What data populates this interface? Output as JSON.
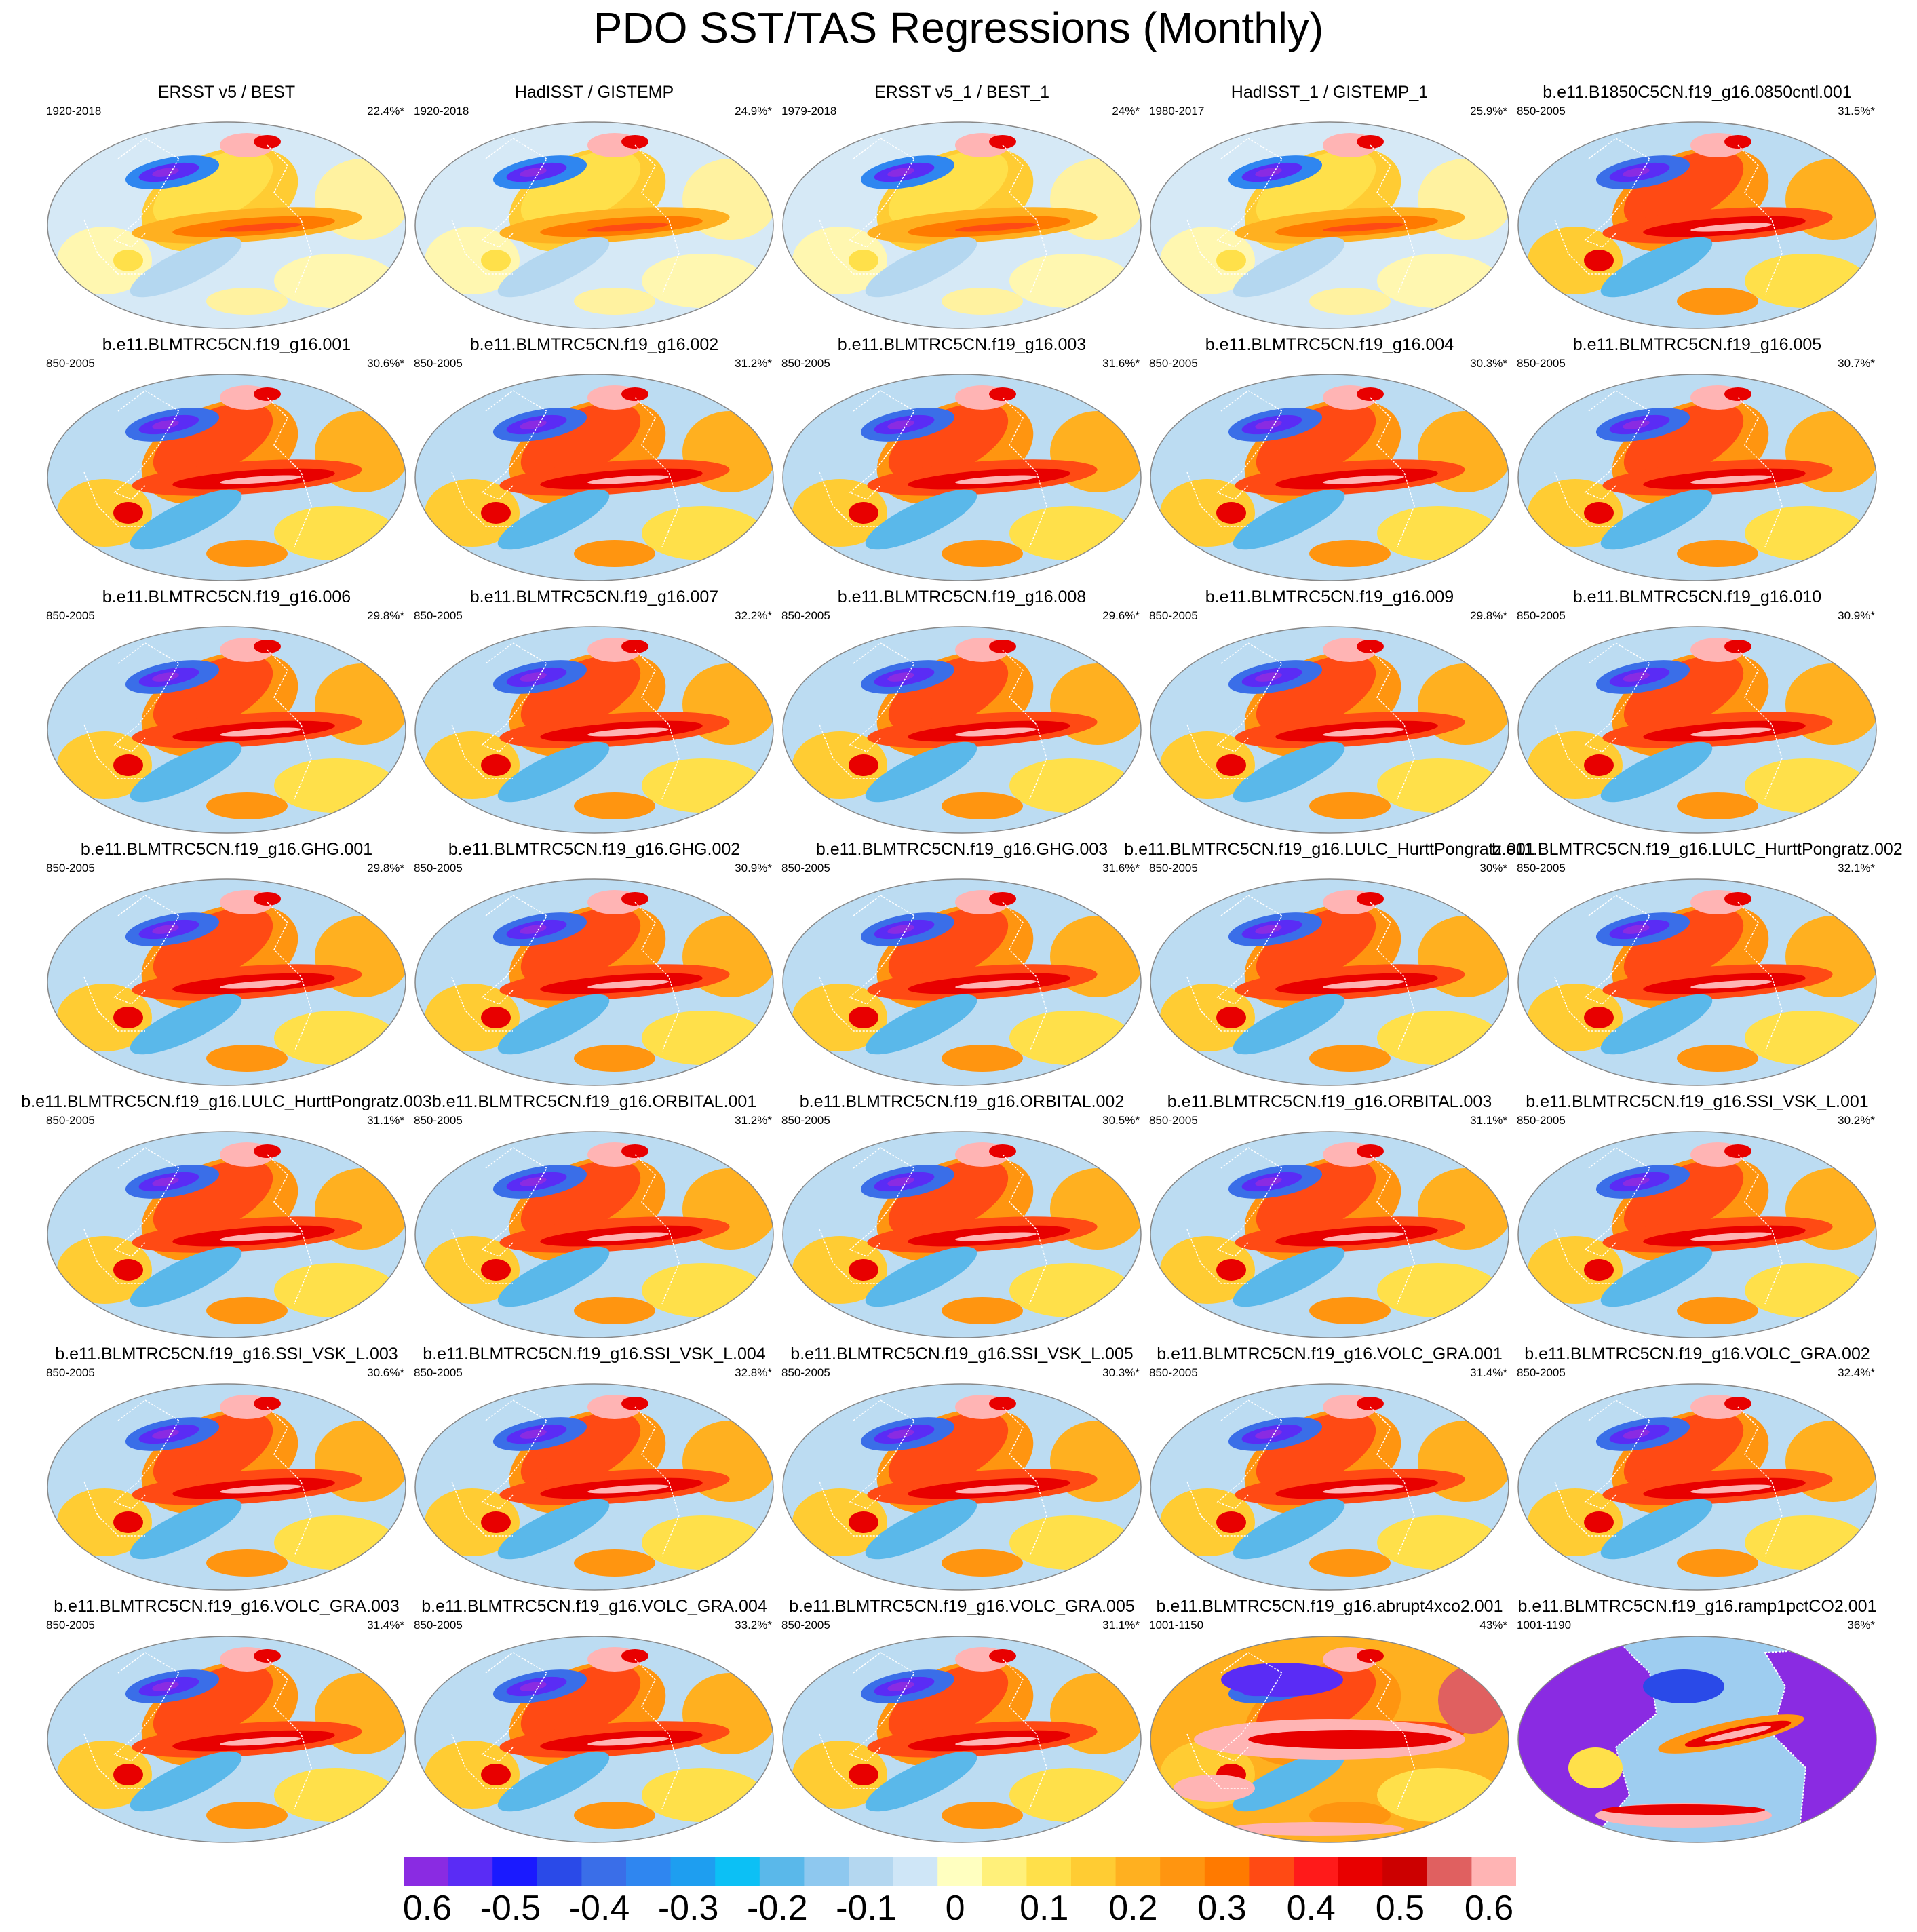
{
  "title": "PDO SST/TAS Regressions (Monthly)",
  "chart_data": {
    "type": "heatmap",
    "title": "PDO SST/TAS Regressions (Monthly)",
    "colorbar": {
      "ticks": [
        "-0.6",
        "-0.5",
        "-0.4",
        "-0.3",
        "-0.2",
        "-0.1",
        "0",
        "0.1",
        "0.2",
        "0.3",
        "0.4",
        "0.5",
        "0.6"
      ],
      "colors": [
        "#8a2be2",
        "#5a2cf5",
        "#1a1aff",
        "#2a4ae8",
        "#3a6ee8",
        "#2f86f0",
        "#1e9ef0",
        "#0cc0f5",
        "#5ab8ea",
        "#8ec8ef",
        "#b4d7f0",
        "#cfe6f7",
        "#ffffc0",
        "#fff07a",
        "#ffe04a",
        "#ffcc33",
        "#ffb020",
        "#ff9510",
        "#ff7a00",
        "#ff4a14",
        "#ff1a1a",
        "#e80000",
        "#cc0000",
        "#e06060",
        "#ffb4b4"
      ]
    },
    "panels": [
      {
        "name": "ERSST v5 / BEST",
        "years": "1920-2018",
        "pct": "22.4%*"
      },
      {
        "name": "HadISST / GISTEMP",
        "years": "1920-2018",
        "pct": "24.9%*"
      },
      {
        "name": "ERSST v5_1 / BEST_1",
        "years": "1979-2018",
        "pct": "24%*"
      },
      {
        "name": "HadISST_1 / GISTEMP_1",
        "years": "1980-2017",
        "pct": "25.9%*"
      },
      {
        "name": "b.e11.B1850C5CN.f19_g16.0850cntl.001",
        "years": "850-2005",
        "pct": "31.5%*"
      },
      {
        "name": "b.e11.BLMTRC5CN.f19_g16.001",
        "years": "850-2005",
        "pct": "30.6%*"
      },
      {
        "name": "b.e11.BLMTRC5CN.f19_g16.002",
        "years": "850-2005",
        "pct": "31.2%*"
      },
      {
        "name": "b.e11.BLMTRC5CN.f19_g16.003",
        "years": "850-2005",
        "pct": "31.6%*"
      },
      {
        "name": "b.e11.BLMTRC5CN.f19_g16.004",
        "years": "850-2005",
        "pct": "30.3%*"
      },
      {
        "name": "b.e11.BLMTRC5CN.f19_g16.005",
        "years": "850-2005",
        "pct": "30.7%*"
      },
      {
        "name": "b.e11.BLMTRC5CN.f19_g16.006",
        "years": "850-2005",
        "pct": "29.8%*"
      },
      {
        "name": "b.e11.BLMTRC5CN.f19_g16.007",
        "years": "850-2005",
        "pct": "32.2%*"
      },
      {
        "name": "b.e11.BLMTRC5CN.f19_g16.008",
        "years": "850-2005",
        "pct": "29.6%*"
      },
      {
        "name": "b.e11.BLMTRC5CN.f19_g16.009",
        "years": "850-2005",
        "pct": "29.8%*"
      },
      {
        "name": "b.e11.BLMTRC5CN.f19_g16.010",
        "years": "850-2005",
        "pct": "30.9%*"
      },
      {
        "name": "b.e11.BLMTRC5CN.f19_g16.GHG.001",
        "years": "850-2005",
        "pct": "29.8%*"
      },
      {
        "name": "b.e11.BLMTRC5CN.f19_g16.GHG.002",
        "years": "850-2005",
        "pct": "30.9%*"
      },
      {
        "name": "b.e11.BLMTRC5CN.f19_g16.GHG.003",
        "years": "850-2005",
        "pct": "31.6%*"
      },
      {
        "name": "b.e11.BLMTRC5CN.f19_g16.LULC_HurttPongratz.001",
        "years": "850-2005",
        "pct": "30%*"
      },
      {
        "name": "b.e11.BLMTRC5CN.f19_g16.LULC_HurttPongratz.002",
        "years": "850-2005",
        "pct": "32.1%*"
      },
      {
        "name": "b.e11.BLMTRC5CN.f19_g16.LULC_HurttPongratz.003",
        "years": "850-2005",
        "pct": "31.1%*"
      },
      {
        "name": "b.e11.BLMTRC5CN.f19_g16.ORBITAL.001",
        "years": "850-2005",
        "pct": "31.2%*"
      },
      {
        "name": "b.e11.BLMTRC5CN.f19_g16.ORBITAL.002",
        "years": "850-2005",
        "pct": "30.5%*"
      },
      {
        "name": "b.e11.BLMTRC5CN.f19_g16.ORBITAL.003",
        "years": "850-2005",
        "pct": "31.1%*"
      },
      {
        "name": "b.e11.BLMTRC5CN.f19_g16.SSI_VSK_L.001",
        "years": "850-2005",
        "pct": "30.2%*"
      },
      {
        "name": "b.e11.BLMTRC5CN.f19_g16.SSI_VSK_L.003",
        "years": "850-2005",
        "pct": "30.6%*"
      },
      {
        "name": "b.e11.BLMTRC5CN.f19_g16.SSI_VSK_L.004",
        "years": "850-2005",
        "pct": "32.8%*"
      },
      {
        "name": "b.e11.BLMTRC5CN.f19_g16.SSI_VSK_L.005",
        "years": "850-2005",
        "pct": "30.3%*"
      },
      {
        "name": "b.e11.BLMTRC5CN.f19_g16.VOLC_GRA.001",
        "years": "850-2005",
        "pct": "31.4%*"
      },
      {
        "name": "b.e11.BLMTRC5CN.f19_g16.VOLC_GRA.002",
        "years": "850-2005",
        "pct": "32.4%*"
      },
      {
        "name": "b.e11.BLMTRC5CN.f19_g16.VOLC_GRA.003",
        "years": "850-2005",
        "pct": "31.4%*"
      },
      {
        "name": "b.e11.BLMTRC5CN.f19_g16.VOLC_GRA.004",
        "years": "850-2005",
        "pct": "33.2%*"
      },
      {
        "name": "b.e11.BLMTRC5CN.f19_g16.VOLC_GRA.005",
        "years": "850-2005",
        "pct": "31.1%*"
      },
      {
        "name": "b.e11.BLMTRC5CN.f19_g16.abrupt4xco2.001",
        "years": "1001-1150",
        "pct": "43%*"
      },
      {
        "name": "b.e11.BLMTRC5CN.f19_g16.ramp1pctCO2.001",
        "years": "1001-1190",
        "pct": "36%*"
      }
    ]
  }
}
